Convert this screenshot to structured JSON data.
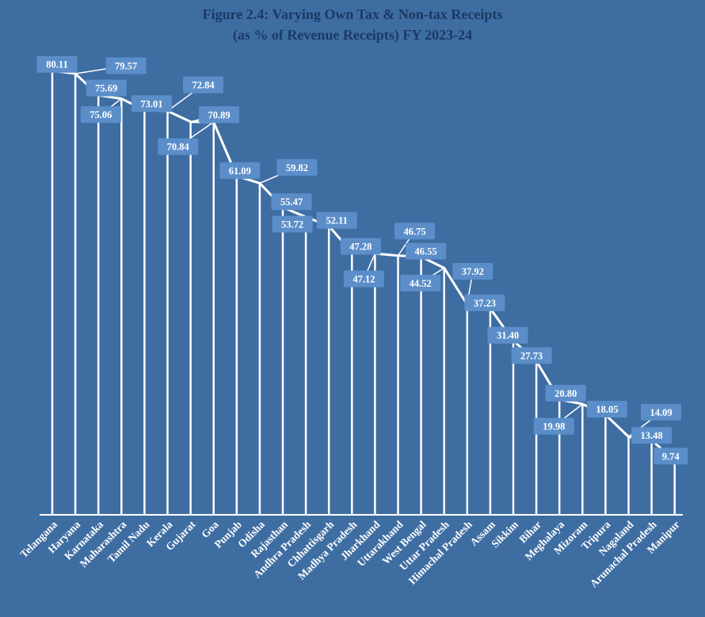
{
  "title": {
    "line1": "Figure 2.4: Varying Own Tax & Non-tax Receipts",
    "line2": "(as % of Revenue Receipts) FY 2023-24"
  },
  "colors": {
    "background": "#3e6da2",
    "label_box": "#5b8ec9",
    "label_text": "#ffffff",
    "line": "#ffffff",
    "axis_text": "#ffffff",
    "title_text": "#1b3a66"
  },
  "chart_data": {
    "type": "line",
    "title": "Figure 2.4: Varying Own Tax & Non-tax Receipts (as % of Revenue Receipts) FY 2023-24",
    "xlabel": "",
    "ylabel": "",
    "ylim": [
      0,
      85
    ],
    "grid": false,
    "legend": false,
    "data_labels": true,
    "sorted": "descending",
    "categories": [
      "Telangana",
      "Haryana",
      "Karnataka",
      "Maharashtra",
      "Tamil Nadu",
      "Kerala",
      "Gujarat",
      "Goa",
      "Punjab",
      "Odisha",
      "Rajasthan",
      "Andhra Pradesh",
      "Chhattisgarh",
      "Madhya Pradesh",
      "Jharkhand",
      "Uttarakhand",
      "West Bengal",
      "Uttar Pradesh",
      "Himachal Pradesh",
      "Assam",
      "Sikkim",
      "Bihar",
      "Meghalaya",
      "Mizoram",
      "Tripura",
      "Nagaland",
      "Arunachal Pradesh",
      "Manipur"
    ],
    "values": [
      80.11,
      79.57,
      75.69,
      75.06,
      73.01,
      72.84,
      70.89,
      70.84,
      61.09,
      59.82,
      55.47,
      53.72,
      52.11,
      47.28,
      47.12,
      46.75,
      46.55,
      44.52,
      37.92,
      37.23,
      31.4,
      27.73,
      20.8,
      19.98,
      18.05,
      14.09,
      13.48,
      9.74
    ],
    "label_layout": [
      [
        6,
        -8,
        0
      ],
      [
        64,
        -10,
        1
      ],
      [
        10,
        -9,
        0
      ],
      [
        -26,
        20,
        1
      ],
      [
        9,
        -8,
        0
      ],
      [
        45,
        -33,
        1
      ],
      [
        36,
        -9,
        1
      ],
      [
        -45,
        31,
        1
      ],
      [
        4,
        -7,
        0
      ],
      [
        47,
        -20,
        1
      ],
      [
        11,
        -7,
        0
      ],
      [
        -17,
        9,
        0
      ],
      [
        10,
        -7,
        0
      ],
      [
        11,
        -8,
        0
      ],
      [
        -14,
        32,
        1
      ],
      [
        21,
        -31,
        1
      ],
      [
        6,
        -7,
        0
      ],
      [
        -30,
        19,
        1
      ],
      [
        7,
        -42,
        1
      ],
      [
        -7,
        -7,
        0
      ],
      [
        -7,
        -7,
        0
      ],
      [
        -6,
        -7,
        0
      ],
      [
        8,
        -8,
        0
      ],
      [
        -36,
        28,
        1
      ],
      [
        2,
        -7,
        0
      ],
      [
        41,
        -31,
        1
      ],
      [
        0,
        -6,
        0
      ],
      [
        -5,
        -6,
        0
      ]
    ]
  }
}
